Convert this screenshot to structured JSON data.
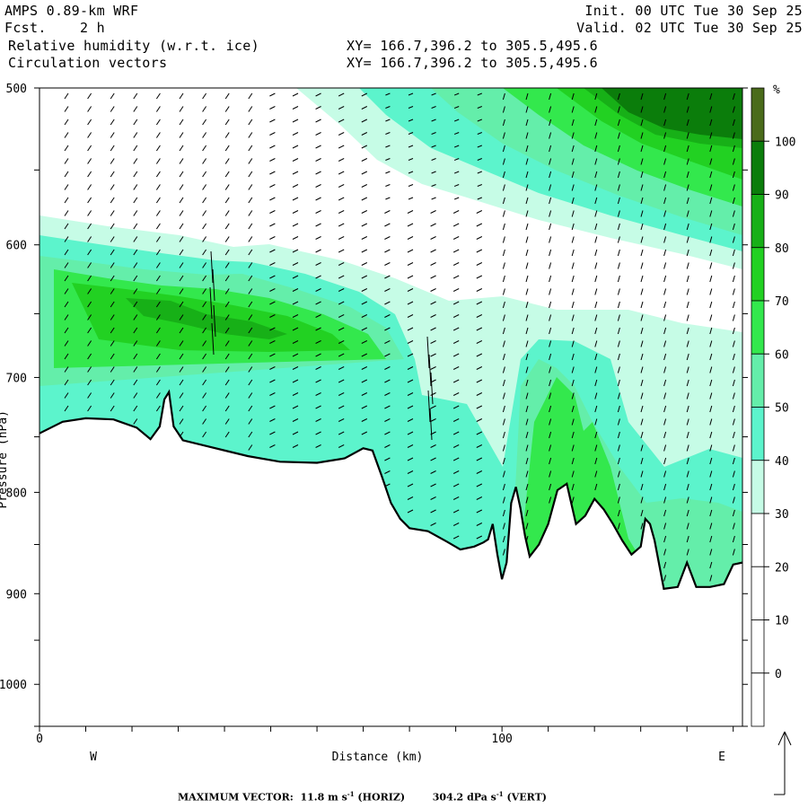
{
  "header": {
    "model": "AMPS 0.89-km WRF",
    "forecast_label": "Fcst.",
    "forecast_value": "2 h",
    "field1": "Relative humidity (w.r.t. ice)",
    "field2": "Circulation vectors",
    "init": "Init. 00 UTC Tue 30 Sep 25",
    "valid": "Valid. 02 UTC Tue 30 Sep 25",
    "xy1": "XY= 166.7,396.2 to 305.5,495.6",
    "xy2": "XY= 166.7,396.2 to 305.5,495.6"
  },
  "footer": {
    "label": "MAXIMUM VECTOR:",
    "horiz_value": "11.8",
    "horiz_unit": "m s",
    "horiz_exp": "-1",
    "horiz_tag": "(HORIZ)",
    "vert_value": "304.2",
    "vert_unit": "dPa s",
    "vert_exp": "-1",
    "vert_tag": "(VERT)"
  },
  "chart_data": {
    "type": "cross-section contour",
    "title": "Relative humidity (w.r.t. ice)",
    "xlabel": "Distance (km)",
    "ylabel": "Pressure (hPa)",
    "xlim": [
      0,
      152
    ],
    "ylim": [
      1050,
      500
    ],
    "x_ticks": [
      0,
      100
    ],
    "y_ticks": [
      500,
      600,
      700,
      800,
      900,
      1000
    ],
    "x_end_labels": [
      "W",
      "E"
    ],
    "colorbar": {
      "unit": "%",
      "levels": [
        0,
        10,
        20,
        30,
        40,
        50,
        60,
        70,
        80,
        90,
        100
      ],
      "colors": [
        "#ffffff",
        "#ffffff",
        "#ffffff",
        "#ffffff",
        "#c6fce6",
        "#5cf4cc",
        "#64eeaa",
        "#33e84d",
        "#22d122",
        "#17b017",
        "#0b7d0b",
        "#4a6b1a"
      ]
    },
    "terrain_pressure_hPa": [
      [
        0,
        747
      ],
      [
        5,
        737
      ],
      [
        10,
        734
      ],
      [
        16,
        735
      ],
      [
        21,
        742
      ],
      [
        24,
        752
      ],
      [
        26,
        741
      ],
      [
        27,
        718
      ],
      [
        28,
        712
      ],
      [
        29,
        741
      ],
      [
        31,
        753
      ],
      [
        36,
        758
      ],
      [
        45,
        767
      ],
      [
        52,
        772
      ],
      [
        60,
        773
      ],
      [
        66,
        769
      ],
      [
        70,
        760
      ],
      [
        72,
        762
      ],
      [
        74,
        785
      ],
      [
        76,
        810
      ],
      [
        78,
        825
      ],
      [
        80,
        834
      ],
      [
        84,
        837
      ],
      [
        88,
        847
      ],
      [
        91,
        855
      ],
      [
        94,
        852
      ],
      [
        96,
        848
      ],
      [
        97,
        845
      ],
      [
        98,
        830
      ],
      [
        99,
        860
      ],
      [
        100,
        885
      ],
      [
        101,
        868
      ],
      [
        102,
        810
      ],
      [
        103,
        795
      ],
      [
        104,
        815
      ],
      [
        105,
        842
      ],
      [
        106,
        862
      ],
      [
        108,
        850
      ],
      [
        110,
        830
      ],
      [
        112,
        798
      ],
      [
        114,
        792
      ],
      [
        116,
        830
      ],
      [
        118,
        822
      ],
      [
        120,
        806
      ],
      [
        122,
        816
      ],
      [
        124,
        830
      ],
      [
        126,
        846
      ],
      [
        128,
        860
      ],
      [
        130,
        852
      ],
      [
        131,
        825
      ],
      [
        132,
        830
      ],
      [
        133,
        846
      ],
      [
        135,
        895
      ],
      [
        138,
        893
      ],
      [
        140,
        868
      ],
      [
        142,
        893
      ],
      [
        145,
        893
      ],
      [
        148,
        890
      ],
      [
        150,
        870
      ],
      [
        152,
        868
      ]
    ],
    "rh_regions": [
      {
        "level_pct": 30,
        "description": "moist layer above terrain between ~610 and ~780 hPa, west half"
      },
      {
        "level_pct": 60,
        "description": "peaks near 680-700 hPa around 20-50 km"
      },
      {
        "level_pct": 90,
        "description": "upper-level moist band top-right near 500-560 hPa, 120-152 km"
      }
    ],
    "max_vector": {
      "horiz_m_s": 11.8,
      "vert_dPa_s": 304.2
    }
  }
}
